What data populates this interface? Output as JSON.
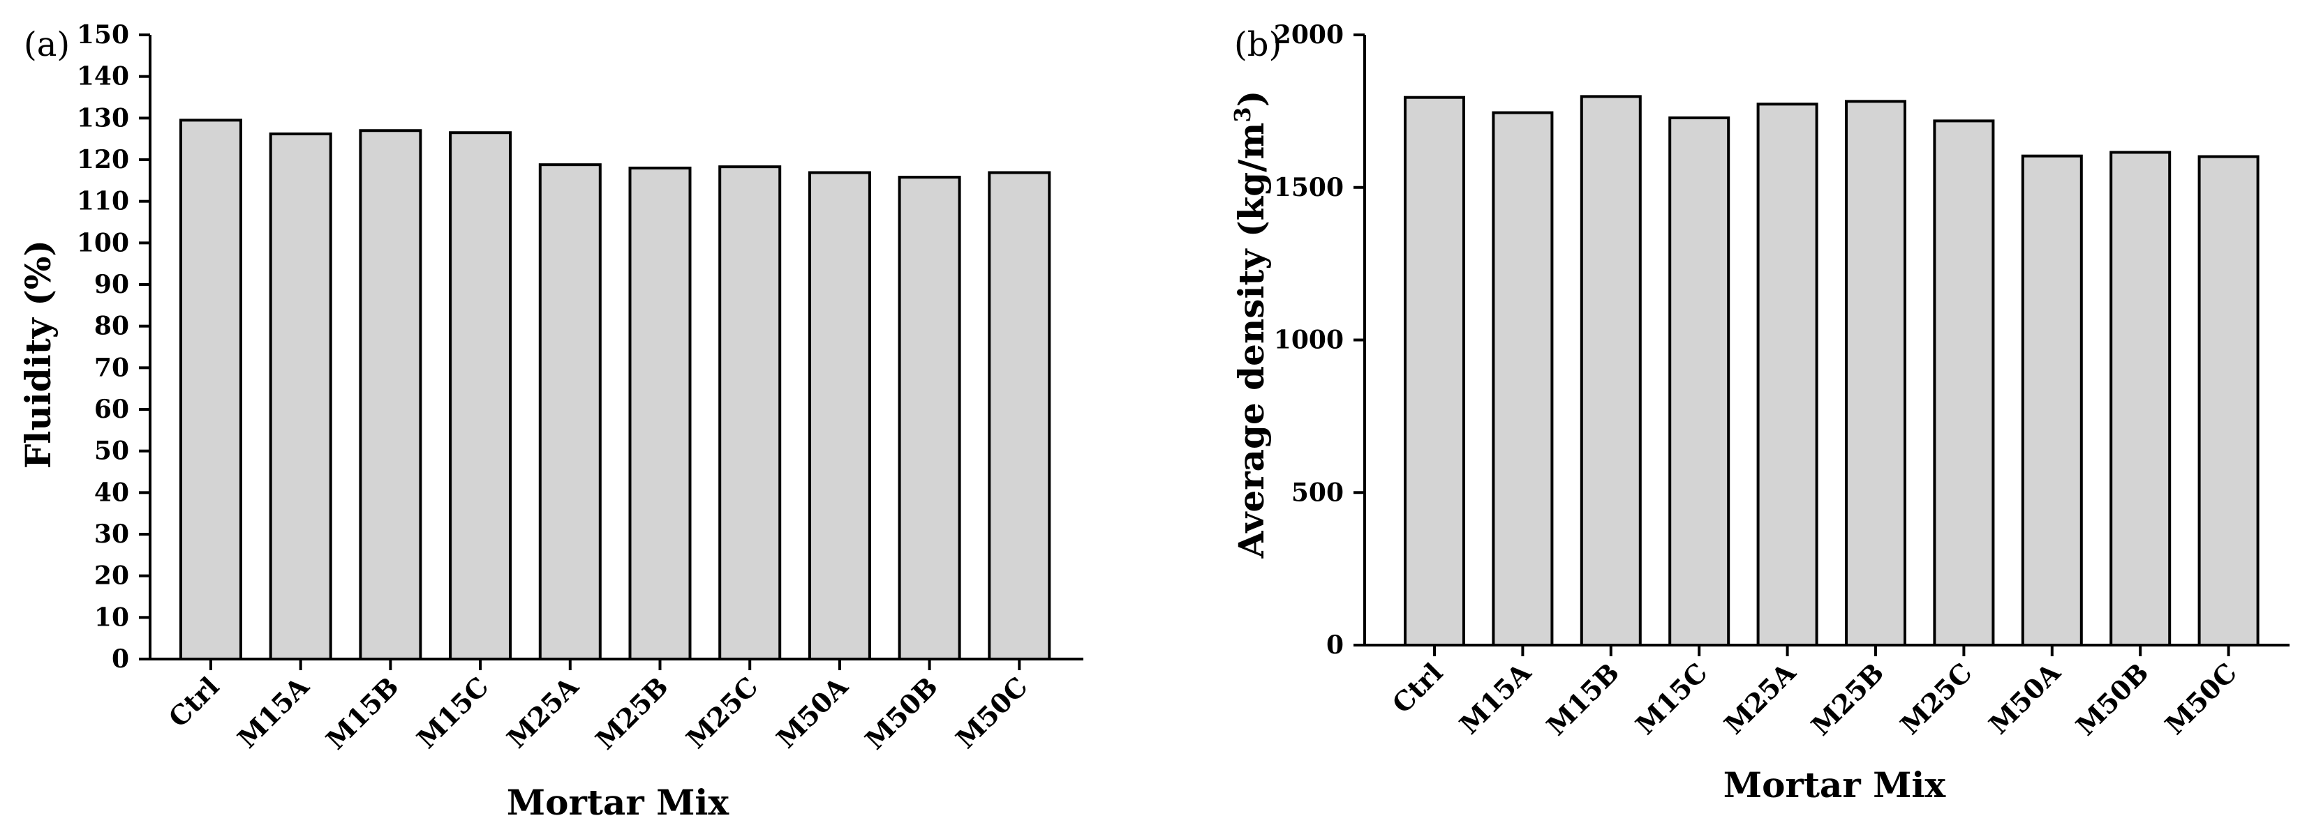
{
  "colors": {
    "bar_fill": "#d4d4d4",
    "bar_stroke": "#000000",
    "axis": "#000000",
    "background": "#ffffff"
  },
  "chart_data": [
    {
      "type": "bar",
      "panel_label": "(a)",
      "categories": [
        "Ctrl",
        "M15A",
        "M15B",
        "M15C",
        "M25A",
        "M25B",
        "M25C",
        "M50A",
        "M50B",
        "M50C"
      ],
      "values": [
        129.5,
        126.2,
        127.0,
        126.5,
        118.8,
        118.0,
        118.3,
        116.9,
        115.8,
        116.9
      ],
      "title": "",
      "xlabel": "Mortar Mix",
      "ylabel": "Fluidity (%)",
      "ylim": [
        0,
        150
      ],
      "yticks": [
        0,
        10,
        20,
        30,
        40,
        50,
        60,
        70,
        80,
        90,
        100,
        110,
        120,
        130,
        140,
        150
      ],
      "grid": false,
      "legend": "none"
    },
    {
      "type": "bar",
      "panel_label": "(b)",
      "categories": [
        "Ctrl",
        "M15A",
        "M15B",
        "M15C",
        "M25A",
        "M25B",
        "M25C",
        "M50A",
        "M50B",
        "M50C"
      ],
      "values": [
        1795,
        1745,
        1798,
        1728,
        1773,
        1782,
        1718,
        1603,
        1615,
        1601
      ],
      "title": "",
      "xlabel": "Mortar Mix",
      "ylabel": "Average density (kg/m",
      "ylabel_superscript": "3",
      "ylabel_suffix": ")",
      "ylim": [
        0,
        2000
      ],
      "yticks": [
        0,
        500,
        1000,
        1500,
        2000
      ],
      "grid": false,
      "legend": "none"
    }
  ]
}
